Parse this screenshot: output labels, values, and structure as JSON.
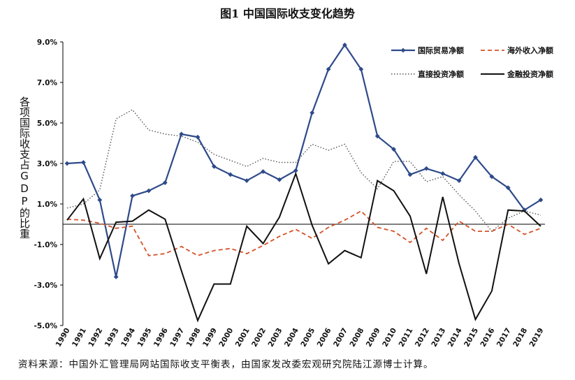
{
  "chart_data": {
    "type": "line",
    "title": "图1 中国国际收支变化趋势",
    "ylabel": "各项国际收支占GDP的比重",
    "x": [
      "1990",
      "1991",
      "1992",
      "1993",
      "1994",
      "1995",
      "1996",
      "1997",
      "1998",
      "1999",
      "2000",
      "2001",
      "2002",
      "2003",
      "2004",
      "2005",
      "2006",
      "2007",
      "2008",
      "2009",
      "2010",
      "2011",
      "2012",
      "2013",
      "2014",
      "2015",
      "2016",
      "2017",
      "2018",
      "2019"
    ],
    "yticks": [
      "9.0%",
      "7.0%",
      "5.0%",
      "3.0%",
      "1.0%",
      "-1.0%",
      "-3.0%",
      "-5.0%"
    ],
    "ylim": [
      -5.0,
      9.0
    ],
    "grid": false,
    "legend_position": "top-right",
    "series": [
      {
        "name": "国际贸易净额",
        "color": "#2e4a8a",
        "style": "solid-marker",
        "values": [
          3.0,
          3.05,
          1.2,
          -2.6,
          1.4,
          1.65,
          2.05,
          4.45,
          4.3,
          2.85,
          2.45,
          2.15,
          2.6,
          2.2,
          2.65,
          5.5,
          7.65,
          8.85,
          7.65,
          4.35,
          3.7,
          2.45,
          2.75,
          2.5,
          2.15,
          3.3,
          2.35,
          1.8,
          0.7,
          1.2
        ]
      },
      {
        "name": "海外收入净额",
        "color": "#d4522a",
        "style": "dashed",
        "values": [
          0.25,
          0.2,
          0.05,
          -0.2,
          -0.1,
          -1.55,
          -1.45,
          -1.1,
          -1.55,
          -1.3,
          -1.2,
          -1.45,
          -1.05,
          -0.6,
          -0.25,
          -0.7,
          -0.15,
          0.2,
          0.65,
          -0.15,
          -0.35,
          -0.9,
          -0.2,
          -0.8,
          0.15,
          -0.35,
          -0.35,
          0.0,
          -0.5,
          -0.2
        ]
      },
      {
        "name": "直接投资净额",
        "color": "#555555",
        "style": "dotted",
        "values": [
          0.8,
          1.0,
          1.7,
          5.2,
          5.65,
          4.65,
          4.45,
          4.35,
          4.05,
          3.45,
          3.15,
          2.85,
          3.25,
          3.05,
          3.05,
          3.95,
          3.65,
          3.95,
          2.55,
          1.75,
          3.1,
          3.1,
          2.1,
          2.35,
          1.45,
          0.65,
          -0.35,
          0.3,
          0.65,
          0.45
        ]
      },
      {
        "name": "金融投资净额",
        "color": "#111111",
        "style": "solid",
        "values": [
          0.2,
          1.25,
          -1.7,
          0.1,
          0.15,
          0.7,
          0.25,
          -2.3,
          -4.75,
          -2.95,
          -2.95,
          -0.1,
          -0.95,
          0.35,
          2.5,
          -0.05,
          -1.95,
          -1.3,
          -1.65,
          2.15,
          1.65,
          0.4,
          -2.45,
          1.35,
          -1.95,
          -4.7,
          -3.3,
          0.7,
          0.65,
          -0.1
        ]
      }
    ]
  },
  "footer": {
    "source": "资料来源：中国外汇管理局网站国际收支平衡表，由国家发改委宏观研究院陆江源博士计算。"
  }
}
